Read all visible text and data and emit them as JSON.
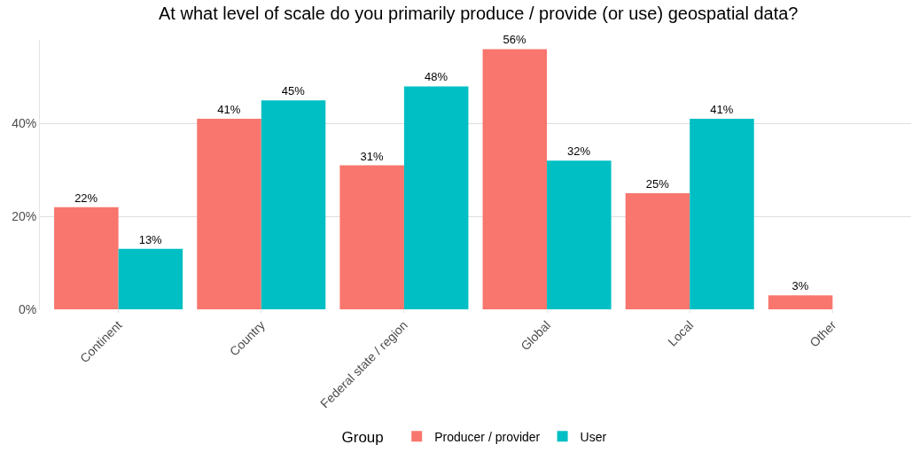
{
  "chart_data": {
    "type": "bar",
    "title": "At what level of scale do you primarily produce / provide (or use) geospatial data?",
    "categories": [
      "Continent",
      "Country",
      "Federal state / region",
      "Global",
      "Local",
      "Other"
    ],
    "series": [
      {
        "name": "Producer / provider",
        "color": "#f8766d",
        "values": [
          22,
          41,
          31,
          56,
          25,
          3
        ],
        "value_labels": [
          "22%",
          "41%",
          "31%",
          "56%",
          "25%",
          "3%"
        ]
      },
      {
        "name": "User",
        "color": "#00bfc4",
        "values": [
          13,
          45,
          48,
          32,
          41,
          null
        ],
        "value_labels": [
          "13%",
          "45%",
          "48%",
          "32%",
          "41%",
          null
        ]
      }
    ],
    "legend_title": "Group",
    "legend": "bottom",
    "grid": "y",
    "ylim": [
      0,
      58
    ],
    "yticks": [
      {
        "value": 0,
        "label": "0%"
      },
      {
        "value": 20,
        "label": "20%"
      },
      {
        "value": 40,
        "label": "40%"
      }
    ]
  }
}
